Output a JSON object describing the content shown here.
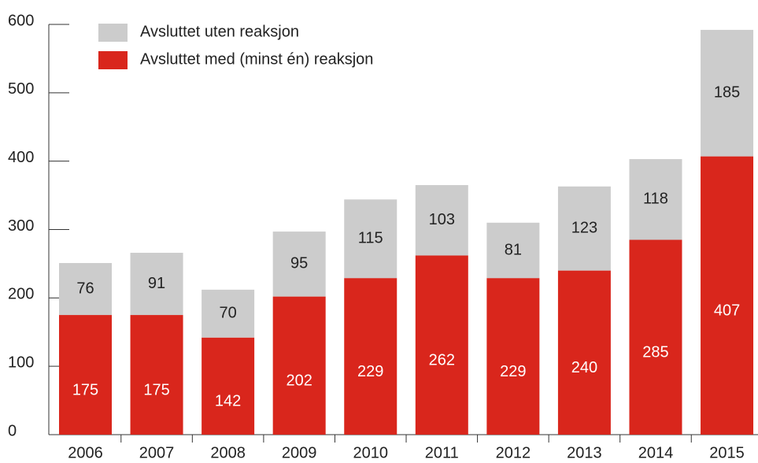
{
  "chart_data": {
    "type": "stacked_bar",
    "categories": [
      "2006",
      "2007",
      "2008",
      "2009",
      "2010",
      "2011",
      "2012",
      "2013",
      "2014",
      "2015"
    ],
    "series": [
      {
        "name": "Avsluttet med (minst én) reaksjon",
        "color": "#d9261c",
        "values": [
          175,
          175,
          142,
          202,
          229,
          262,
          229,
          240,
          285,
          407
        ]
      },
      {
        "name": "Avsluttet uten reaksjon",
        "color": "#cccccc",
        "values": [
          76,
          91,
          70,
          95,
          115,
          103,
          81,
          123,
          118,
          185
        ]
      }
    ],
    "ylim": [
      0,
      600
    ],
    "yticks": [
      0,
      100,
      200,
      300,
      400,
      500,
      600
    ]
  }
}
